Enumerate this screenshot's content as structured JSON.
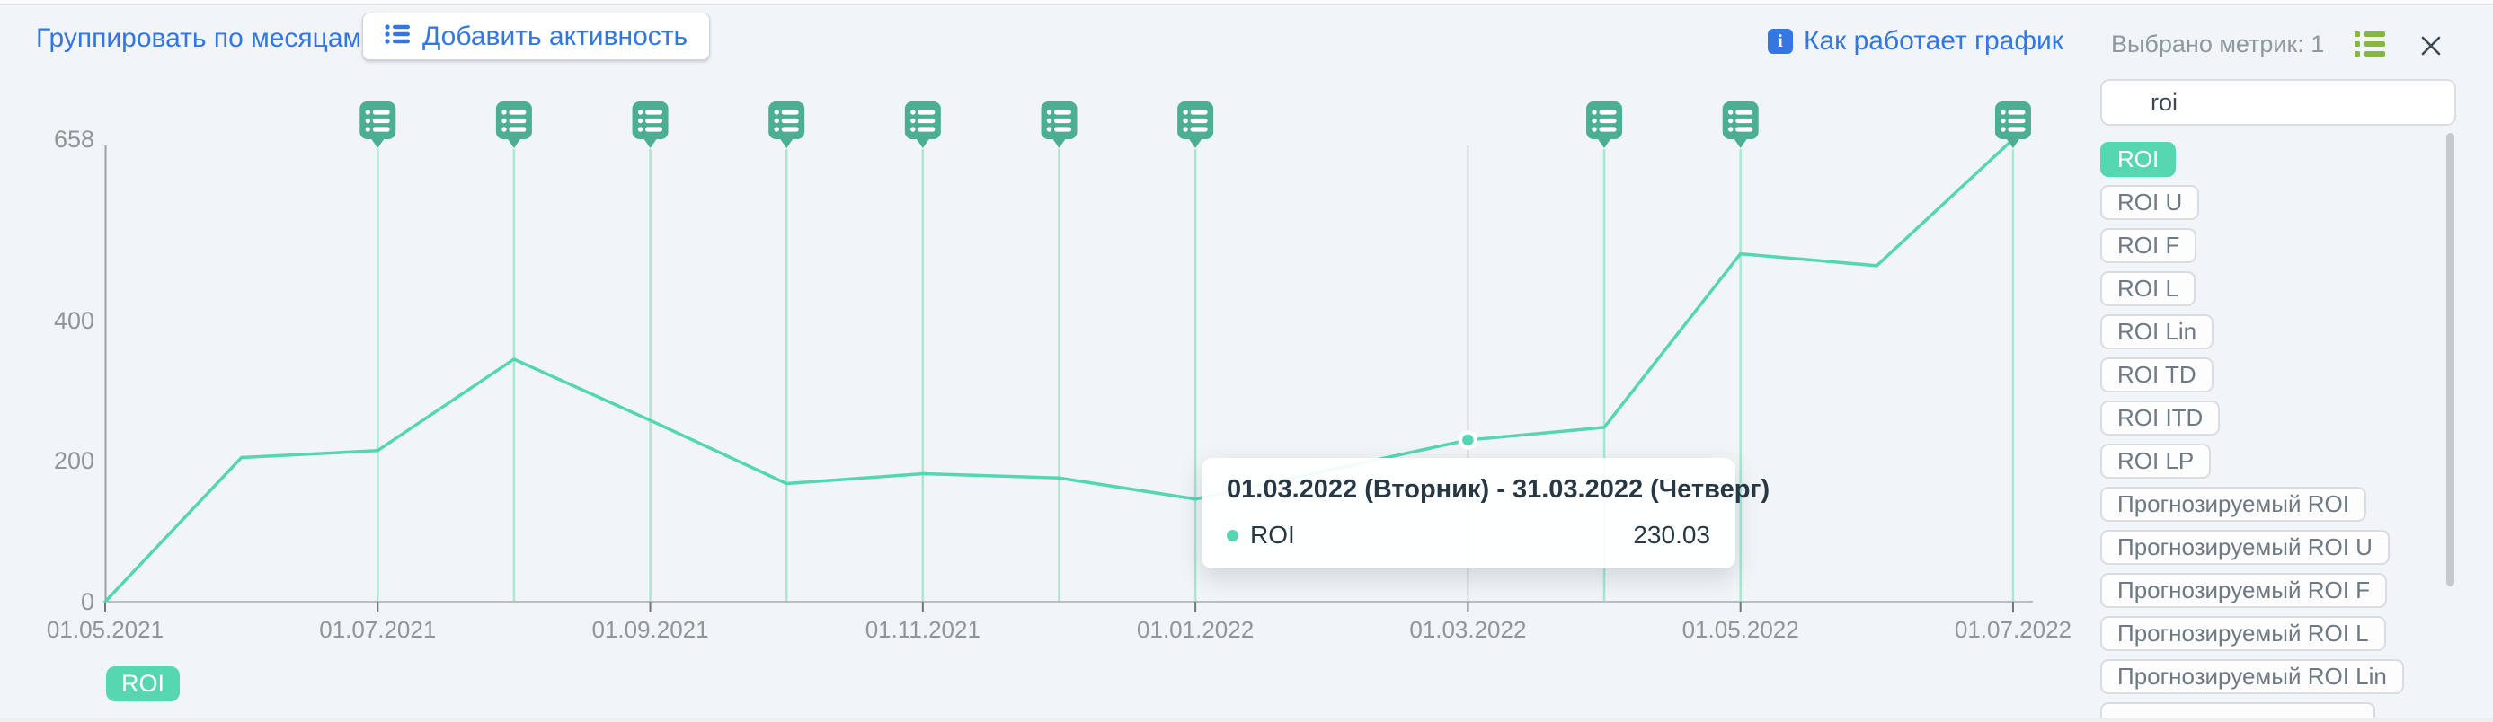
{
  "toolbar": {
    "group_by_label": "Группировать по месяцам",
    "add_activity_label": "Добавить активность",
    "how_it_works_label": "Как работает график",
    "info_glyph": "i"
  },
  "sidebar": {
    "header": "Выбрано метрик: 1",
    "search_value": "roi",
    "metrics": [
      {
        "label": "ROI",
        "selected": true
      },
      {
        "label": "ROI U",
        "selected": false
      },
      {
        "label": "ROI F",
        "selected": false
      },
      {
        "label": "ROI L",
        "selected": false
      },
      {
        "label": "ROI Lin",
        "selected": false
      },
      {
        "label": "ROI TD",
        "selected": false
      },
      {
        "label": "ROI ITD",
        "selected": false
      },
      {
        "label": "ROI LP",
        "selected": false
      },
      {
        "label": "Прогнозируемый ROI",
        "selected": false
      },
      {
        "label": "Прогнозируемый ROI U",
        "selected": false
      },
      {
        "label": "Прогнозируемый ROI F",
        "selected": false
      },
      {
        "label": "Прогнозируемый ROI L",
        "selected": false
      },
      {
        "label": "Прогнозируемый ROI Lin",
        "selected": false
      },
      {
        "label": "",
        "selected": false,
        "cut_off": true
      }
    ]
  },
  "legend": {
    "series_label": "ROI"
  },
  "tooltip": {
    "title": "01.03.2022 (Вторник) - 31.03.2022 (Четверг)",
    "series": "ROI",
    "value": "230.03"
  },
  "chart_data": {
    "type": "line",
    "title": "",
    "xlabel": "",
    "ylabel": "",
    "series_name": "ROI",
    "x": [
      "01.05.2021",
      "01.06.2021",
      "01.07.2021",
      "01.08.2021",
      "01.09.2021",
      "01.10.2021",
      "01.11.2021",
      "01.12.2021",
      "01.01.2022",
      "01.02.2022",
      "01.03.2022",
      "01.04.2022",
      "01.05.2022",
      "01.06.2022",
      "01.07.2022"
    ],
    "values": [
      0,
      205,
      215,
      345,
      258,
      168,
      182,
      176,
      146,
      188,
      230.03,
      248,
      495,
      478,
      658
    ],
    "x_tick_labels": [
      "01.05.2021",
      "01.07.2021",
      "01.09.2021",
      "01.11.2021",
      "01.01.2022",
      "01.03.2022",
      "01.05.2022",
      "01.07.2022"
    ],
    "y_ticks": [
      658,
      400,
      200,
      0
    ],
    "ylim": [
      0,
      658
    ],
    "hover_index": 10,
    "hover_value_label": "230.03",
    "activity_months": [
      "01.07.2021",
      "01.08.2021",
      "01.09.2021",
      "01.10.2021",
      "01.11.2021",
      "01.12.2021",
      "01.01.2022",
      "01.04.2022",
      "01.05.2022",
      "01.07.2022"
    ],
    "legend_position": "bottom-left",
    "grid": "off",
    "colors": {
      "line": "#55d6b3",
      "activity_marker": "#4cae93",
      "activity_line": "#a9e6d3",
      "crosshair": "#d2d5d9",
      "axis": "#aab0b5",
      "accent_blue": "#3377e3",
      "selected_pill": "#56d7b2",
      "sidebar_icon_green": "#84b840"
    }
  }
}
